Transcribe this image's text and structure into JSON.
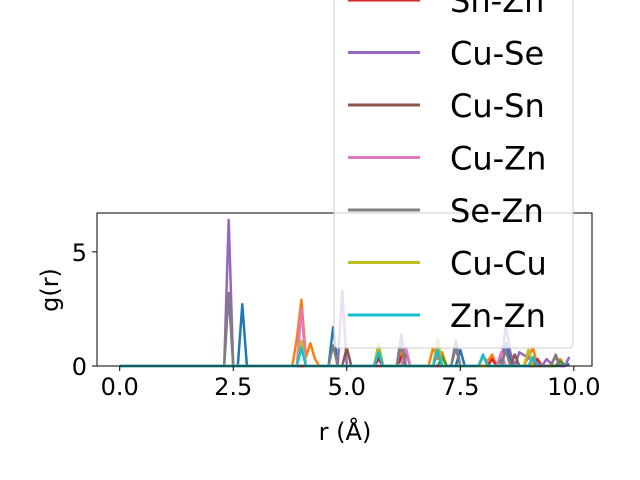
{
  "chart_data": {
    "type": "line",
    "title": "",
    "xlabel": "r (Å)",
    "ylabel": "g(r)",
    "xlim": [
      -0.5,
      10.4
    ],
    "ylim": [
      0,
      6.7
    ],
    "xticks": [
      0.0,
      2.5,
      5.0,
      7.5,
      10.0
    ],
    "xtick_labels": [
      "0.0",
      "2.5",
      "5.0",
      "7.5",
      "10.0"
    ],
    "yticks": [
      0,
      5
    ],
    "ytick_labels": [
      "0",
      "5"
    ],
    "grid": false,
    "legend_placement": "upper-right, extending above the plot",
    "legend": [
      {
        "label": "Sn-Zn",
        "color": "#d62728"
      },
      {
        "label": "Cu-Se",
        "color": "#9467bd"
      },
      {
        "label": "Cu-Sn",
        "color": "#8c564b"
      },
      {
        "label": "Cu-Zn",
        "color": "#e377c2"
      },
      {
        "label": "Se-Zn",
        "color": "#7f7f7f"
      },
      {
        "label": "Cu-Cu",
        "color": "#bcbd22"
      },
      {
        "label": "Zn-Zn",
        "color": "#17becf"
      }
    ],
    "series": [
      {
        "color": "#1f77b4",
        "x": [
          0,
          2.3,
          2.5,
          2.6,
          2.7,
          2.8,
          3.8,
          4.0,
          4.6,
          4.7,
          4.8,
          5.6,
          5.7,
          5.8,
          6.1,
          6.2,
          6.3,
          6.9,
          7.0,
          7.1,
          7.4,
          7.5,
          7.6,
          8.3,
          8.4,
          8.5,
          8.6,
          8.7,
          9.8,
          9.9
        ],
        "y": [
          0,
          0,
          0,
          0,
          2.7,
          0,
          0,
          0,
          0,
          1.7,
          0,
          0,
          0.5,
          0,
          0,
          0.8,
          0,
          0,
          0.6,
          0,
          0,
          0.7,
          0,
          0,
          0.4,
          1.0,
          0.3,
          0,
          0,
          0.1
        ]
      },
      {
        "color": "#ff7f0e",
        "x": [
          0,
          3.8,
          3.9,
          4.0,
          4.1,
          4.2,
          4.3,
          4.4,
          4.5,
          5.6,
          5.7,
          5.8,
          6.1,
          6.2,
          6.3,
          6.8,
          6.9,
          7.0,
          7.1,
          7.2,
          7.9,
          8.0,
          8.1,
          8.2,
          8.3,
          8.9,
          9.0,
          9.1,
          9.2,
          9.6,
          9.7,
          9.8
        ],
        "y": [
          0,
          0,
          1.2,
          2.9,
          0.4,
          1.0,
          0.3,
          0,
          0,
          0,
          0.8,
          0,
          0,
          0.6,
          0,
          0,
          0.8,
          0.3,
          0.6,
          0,
          0,
          0.4,
          0.2,
          0.5,
          0,
          0,
          0.4,
          0.8,
          0,
          0,
          0.3,
          0
        ]
      },
      {
        "color": "#2ca02c",
        "x": [
          0,
          5.6,
          5.7,
          5.8,
          6.1,
          6.2,
          6.3,
          7.0,
          7.1,
          7.2,
          8.3,
          8.4,
          8.5,
          9.6,
          9.7,
          9.8
        ],
        "y": [
          0,
          0,
          0.4,
          0,
          0,
          0.3,
          0,
          0,
          0.4,
          0,
          0,
          0.3,
          0,
          0,
          0.2,
          0
        ]
      },
      {
        "color": "#d62728",
        "x": [
          0,
          5.6,
          5.7,
          5.8,
          6.1,
          6.2,
          6.3,
          8.1,
          8.2,
          8.3,
          9.1,
          9.2,
          9.3
        ],
        "y": [
          0,
          0,
          0.3,
          0,
          0,
          0.4,
          0,
          0,
          0.3,
          0,
          0,
          0.3,
          0
        ]
      },
      {
        "color": "#9467bd",
        "x": [
          0,
          2.3,
          2.4,
          2.5,
          2.6,
          4.8,
          4.9,
          5.0,
          6.1,
          6.2,
          6.3,
          7.3,
          7.4,
          7.5,
          8.4,
          8.5,
          8.6,
          8.7,
          8.8,
          9.3,
          9.4,
          9.5,
          9.6,
          9.7,
          9.8,
          9.9
        ],
        "y": [
          0,
          0,
          6.4,
          0,
          0,
          0,
          3.3,
          0,
          0,
          1.4,
          0,
          0,
          1.1,
          0,
          0,
          1.8,
          0.6,
          0,
          0.6,
          0,
          0.3,
          0.1,
          0.4,
          0,
          0,
          0.4
        ]
      },
      {
        "color": "#8c564b",
        "x": [
          0,
          4.9,
          5.0,
          5.1,
          6.2,
          6.3,
          6.4,
          8.6,
          8.7,
          8.8
        ],
        "y": [
          0,
          0,
          0.8,
          0,
          0,
          0.6,
          0,
          0,
          0.5,
          0
        ]
      },
      {
        "color": "#e377c2",
        "x": [
          0,
          3.9,
          4.0,
          4.1,
          6.2,
          6.3,
          6.4,
          8.3,
          8.4,
          8.5
        ],
        "y": [
          0,
          0,
          2.5,
          0,
          0,
          0.8,
          0,
          0,
          0.6,
          0
        ]
      },
      {
        "color": "#7f7f7f",
        "x": [
          0,
          2.2,
          2.3,
          2.4,
          2.5,
          4.6,
          4.7,
          4.8,
          6.1,
          6.2,
          6.3,
          7.3,
          7.4,
          7.5,
          8.4,
          8.5,
          8.6,
          9.5,
          9.6,
          9.7
        ],
        "y": [
          0,
          0,
          0,
          3.2,
          0,
          0,
          0.9,
          0,
          0,
          1.0,
          0,
          0,
          0.8,
          0,
          0,
          0.7,
          0,
          0,
          0.5,
          0
        ]
      },
      {
        "color": "#bcbd22",
        "x": [
          0,
          3.9,
          4.0,
          4.1,
          5.6,
          5.7,
          5.8,
          6.9,
          7.0,
          7.1,
          8.9,
          9.0,
          9.1
        ],
        "y": [
          0,
          0,
          1.1,
          0,
          0,
          1.0,
          0,
          0,
          1.2,
          0,
          0,
          0.7,
          0
        ]
      },
      {
        "color": "#17becf",
        "x": [
          0,
          3.9,
          4.0,
          4.1,
          5.6,
          5.7,
          5.8,
          6.9,
          7.0,
          7.1,
          7.9,
          8.0,
          8.1,
          9.0,
          9.1,
          9.2
        ],
        "y": [
          0,
          0,
          0.8,
          0,
          0,
          0.6,
          0,
          0,
          0.7,
          0,
          0,
          0.5,
          0,
          0,
          0.4,
          0
        ]
      }
    ]
  }
}
